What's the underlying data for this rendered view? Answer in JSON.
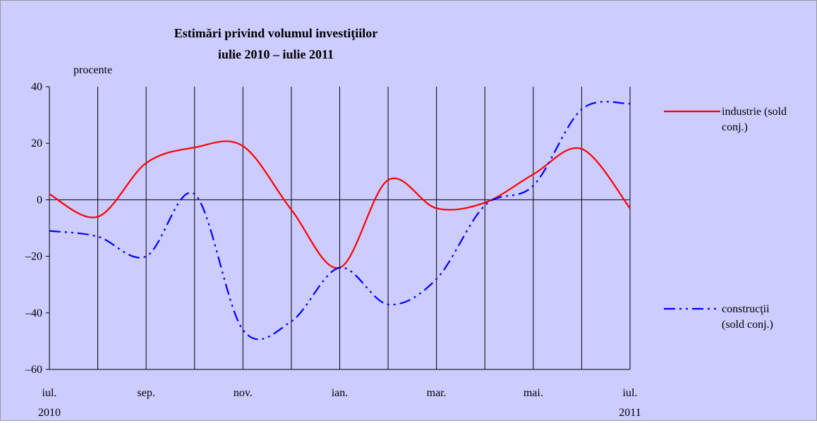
{
  "chart_data": {
    "type": "line",
    "title": "Estimări privind volumul investiţiilor",
    "subtitle": "iulie 2010 – iulie 2011",
    "y_axis_label": "procente",
    "categories": [
      "iul. 2010",
      null,
      "sep.",
      null,
      "nov.",
      null,
      "ian.",
      null,
      "mar.",
      null,
      "mai.",
      null,
      "iul. 2011"
    ],
    "series": [
      {
        "name": "industrie (sold conj.)",
        "color": "#ff0000",
        "dash": "solid",
        "values": [
          2,
          -6,
          13,
          18.5,
          19,
          -3.5,
          -24,
          7,
          -3,
          -1,
          9,
          18,
          -3
        ]
      },
      {
        "name": "construcţii (sold conj.)",
        "color": "#0000ff",
        "dash": "dash-dot-dot",
        "values": [
          -11,
          -13,
          -20,
          2,
          -46,
          -43,
          -24,
          -37,
          -28,
          -2,
          5,
          32,
          34
        ]
      }
    ],
    "ylim": [
      -60,
      40
    ],
    "yticks": [
      {
        "value": -60,
        "label": "–60"
      },
      {
        "value": -40,
        "label": "–40"
      },
      {
        "value": -20,
        "label": "–20"
      },
      0,
      20,
      40
    ],
    "grid": "vertical",
    "legend": "right"
  }
}
